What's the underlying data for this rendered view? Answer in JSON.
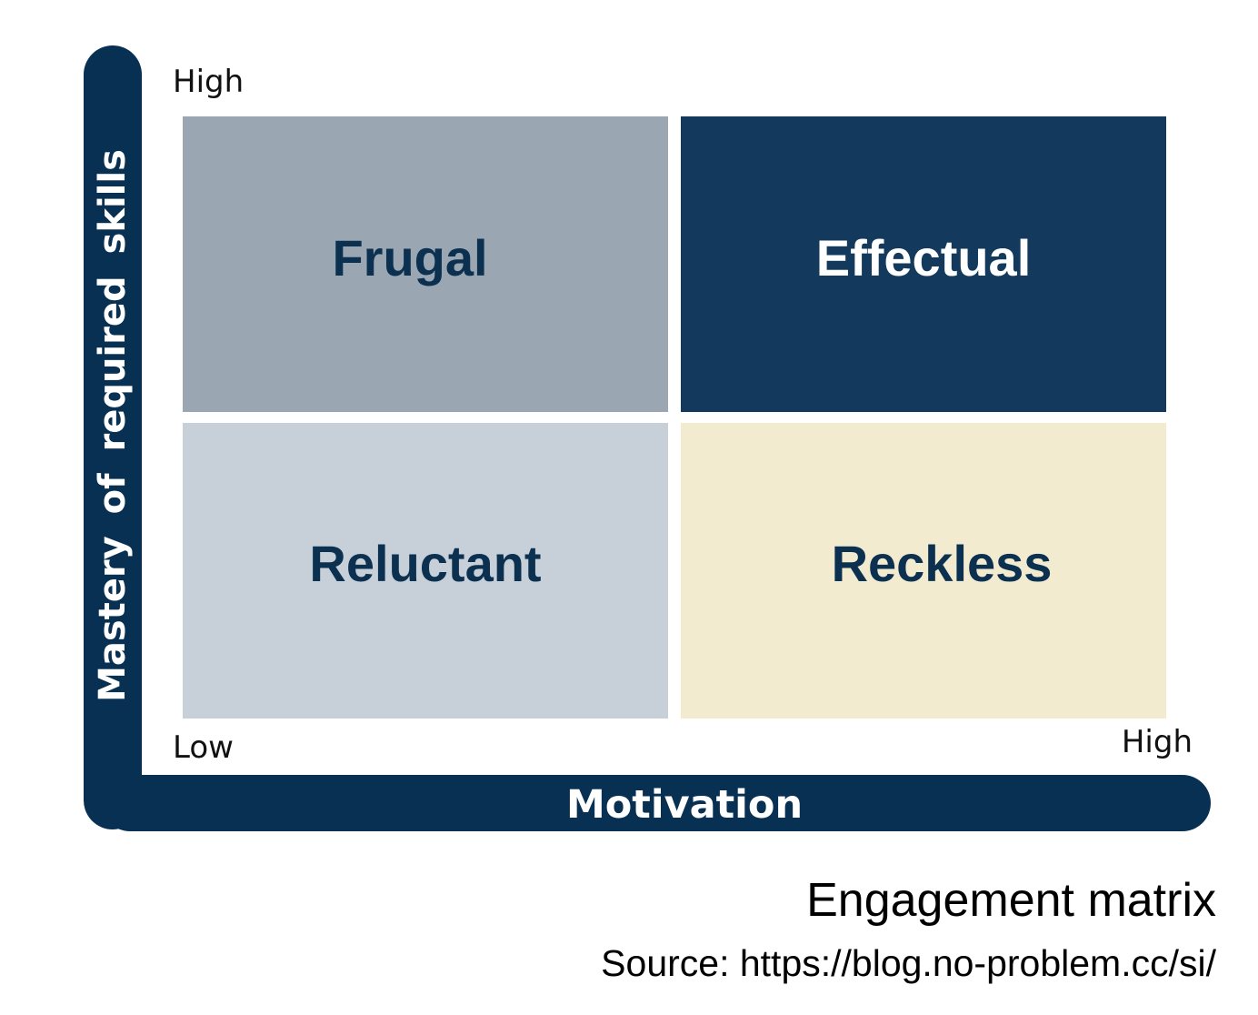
{
  "axes": {
    "y_label": "Mastery of required skills",
    "x_label": "Motivation",
    "y_high": "High",
    "low": "Low",
    "x_high": "High",
    "bar_color": "#083052"
  },
  "quadrants": [
    {
      "label": "Frugal",
      "position": "top-left",
      "fill": "#9aa6b1",
      "text_color": "#0b3050"
    },
    {
      "label": "Effectual",
      "position": "top-right",
      "fill": "#133a5c",
      "text_color": "#ffffff"
    },
    {
      "label": "Reluctant",
      "position": "bottom-left",
      "fill": "#c7d0d9",
      "text_color": "#0b3050"
    },
    {
      "label": "Reckless",
      "position": "bottom-right",
      "fill": "#f3ebd0",
      "text_color": "#0b3050"
    }
  ],
  "caption": {
    "title": "Engagement matrix",
    "source": "Source: https://blog.no-problem.cc/si/"
  }
}
